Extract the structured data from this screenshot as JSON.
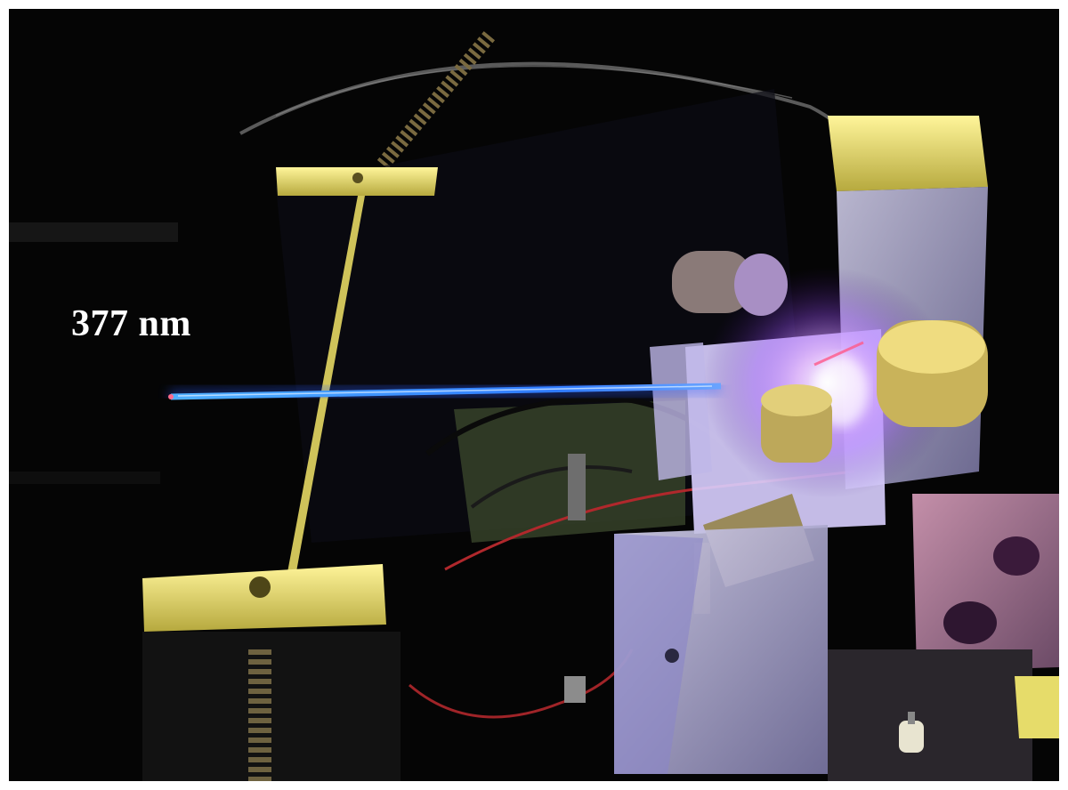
{
  "annotation": {
    "wavelength": "377 nm"
  },
  "colors": {
    "background": "#050505",
    "laser_beam": "#3a8bff",
    "laser_glow": "#2b5cff",
    "brass": "#e6dc6a",
    "metal_block": "#b9b6d8",
    "ptfe_block": "#efeaff",
    "violet_light": "#c77dff",
    "wire_red": "#b0282c",
    "frame_border": "#ffffff"
  },
  "scene_elements": [
    "laser-beam",
    "optical-mount",
    "brass-posts",
    "metal-blocks",
    "red-wires",
    "black-cables",
    "springs",
    "knobs"
  ]
}
